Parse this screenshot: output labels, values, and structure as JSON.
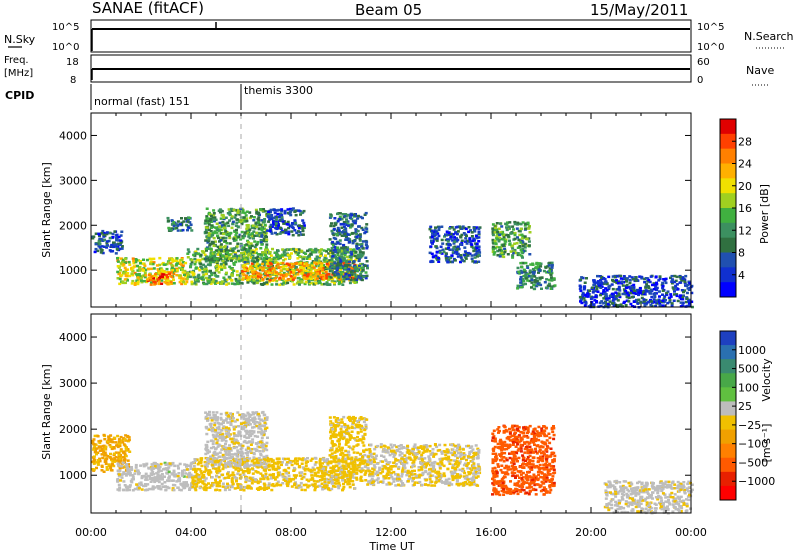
{
  "header": {
    "station": "SANAE (fitACF)",
    "beam": "Beam 05",
    "date": "15/May/2011"
  },
  "strips": {
    "nsky_label": "N.Sky",
    "nsky_ticks": [
      "10^5",
      "10^0"
    ],
    "nsearch_label": "N.Search",
    "nsearch_ticks": [
      "10^5",
      "10^0"
    ],
    "freq_label_1": "Freq.",
    "freq_label_2": "[MHz]",
    "freq_ticks": [
      "18",
      "8"
    ],
    "nave_label": "Nave",
    "nave_ticks": [
      "60",
      "0"
    ],
    "cpid_label": "CPID",
    "cpid_segments": [
      {
        "label": "normal (fast) 151",
        "start_hour": 0
      },
      {
        "label": "themis 3300",
        "start_hour": 6
      }
    ]
  },
  "axes": {
    "ylabel": "Slant Range [km]",
    "yticks": [
      "4000",
      "3000",
      "2000",
      "1000"
    ],
    "xticks": [
      "00:00",
      "04:00",
      "08:00",
      "12:00",
      "16:00",
      "20:00",
      "00:00"
    ],
    "xlabel": "Time UT"
  },
  "power_colorbar": {
    "label": "Power [dB]",
    "ticks": [
      "28",
      "24",
      "20",
      "16",
      "12",
      "8",
      "4"
    ],
    "colors": [
      "#e00000",
      "#ff4000",
      "#ff8000",
      "#ffb000",
      "#f0e000",
      "#a0d020",
      "#40b040",
      "#3c9060",
      "#307040",
      "#2050b0",
      "#1030d0",
      "#0000ff"
    ]
  },
  "velocity_colorbar": {
    "label_main": "Velocity",
    "label_unit": "[m s⁻¹]",
    "ticks": [
      "1000",
      "500",
      "100",
      "25",
      "−25",
      "−100",
      "−500",
      "−1000"
    ],
    "colors": [
      "#1e40c0",
      "#2a70b0",
      "#3a8a70",
      "#48a848",
      "#60c040",
      "#bdbdbd",
      "#f0c000",
      "#f0a000",
      "#ff8000",
      "#ff5a00",
      "#e82000",
      "#ff0000"
    ]
  },
  "chart_data": [
    {
      "type": "heatmap",
      "title": "",
      "xlabel": "Time UT",
      "ylabel": "Slant Range [km]",
      "xlim_hours": [
        0,
        24
      ],
      "ylim_km": [
        180,
        4500
      ],
      "colorbar": "Power [dB]",
      "colorbar_range": [
        0,
        30
      ],
      "cpid_change_hour": 6,
      "regions": [
        {
          "name": "",
          "t0": 0.0,
          "t1": 1.2,
          "r0": 1400,
          "r1": 1900,
          "value": 6
        },
        {
          "name": "",
          "t0": 1.0,
          "t1": 3.8,
          "r0": 700,
          "r1": 1300,
          "value": 18
        },
        {
          "name": "",
          "t0": 2.2,
          "t1": 3.2,
          "r0": 700,
          "r1": 950,
          "value": 24
        },
        {
          "name": "",
          "t0": 3.8,
          "t1": 10.8,
          "r0": 700,
          "r1": 1500,
          "value": 14
        },
        {
          "name": "",
          "t0": 6.0,
          "t1": 10.5,
          "r0": 800,
          "r1": 1200,
          "value": 22
        },
        {
          "name": "",
          "t0": 3.0,
          "t1": 4.0,
          "r0": 1900,
          "r1": 2200,
          "value": 8
        },
        {
          "name": "",
          "t0": 4.5,
          "t1": 7.0,
          "r0": 1200,
          "r1": 2400,
          "value": 12
        },
        {
          "name": "",
          "t0": 7.0,
          "t1": 8.5,
          "r0": 1800,
          "r1": 2400,
          "value": 6
        },
        {
          "name": "",
          "t0": 9.5,
          "t1": 11.0,
          "r0": 800,
          "r1": 2300,
          "value": 8
        },
        {
          "name": "",
          "t0": 13.5,
          "t1": 15.5,
          "r0": 1200,
          "r1": 2000,
          "value": 6
        },
        {
          "name": "",
          "t0": 16.0,
          "t1": 17.5,
          "r0": 1300,
          "r1": 2100,
          "value": 12
        },
        {
          "name": "",
          "t0": 17.0,
          "t1": 18.5,
          "r0": 600,
          "r1": 1200,
          "value": 10
        },
        {
          "name": "",
          "t0": 19.5,
          "t1": 24.0,
          "r0": 200,
          "r1": 900,
          "value": 5
        }
      ]
    },
    {
      "type": "heatmap",
      "title": "",
      "xlabel": "Time UT",
      "ylabel": "Slant Range [km]",
      "xlim_hours": [
        0,
        24
      ],
      "ylim_km": [
        180,
        4500
      ],
      "colorbar": "Velocity [m s⁻¹]",
      "colorbar_range": [
        -1000,
        1000
      ],
      "regions": [
        {
          "name": "",
          "t0": 0.0,
          "t1": 1.5,
          "r0": 1100,
          "r1": 1900,
          "value": -200
        },
        {
          "name": "",
          "t0": 1.0,
          "t1": 4.0,
          "r0": 700,
          "r1": 1300,
          "value": 80
        },
        {
          "name": "",
          "t0": 4.0,
          "t1": 10.5,
          "r0": 700,
          "r1": 1400,
          "value": -50
        },
        {
          "name": "",
          "t0": 4.5,
          "t1": 7.0,
          "r0": 1200,
          "r1": 2400,
          "value": 60
        },
        {
          "name": "",
          "t0": 9.5,
          "t1": 11.0,
          "r0": 900,
          "r1": 2300,
          "value": -60
        },
        {
          "name": "",
          "t0": 11.0,
          "t1": 15.5,
          "r0": 800,
          "r1": 1700,
          "value": 0
        },
        {
          "name": "",
          "t0": 16.0,
          "t1": 18.5,
          "r0": 600,
          "r1": 2100,
          "value": -600
        },
        {
          "name": "",
          "t0": 20.5,
          "t1": 24.0,
          "r0": 200,
          "r1": 900,
          "value": 60
        }
      ]
    }
  ]
}
